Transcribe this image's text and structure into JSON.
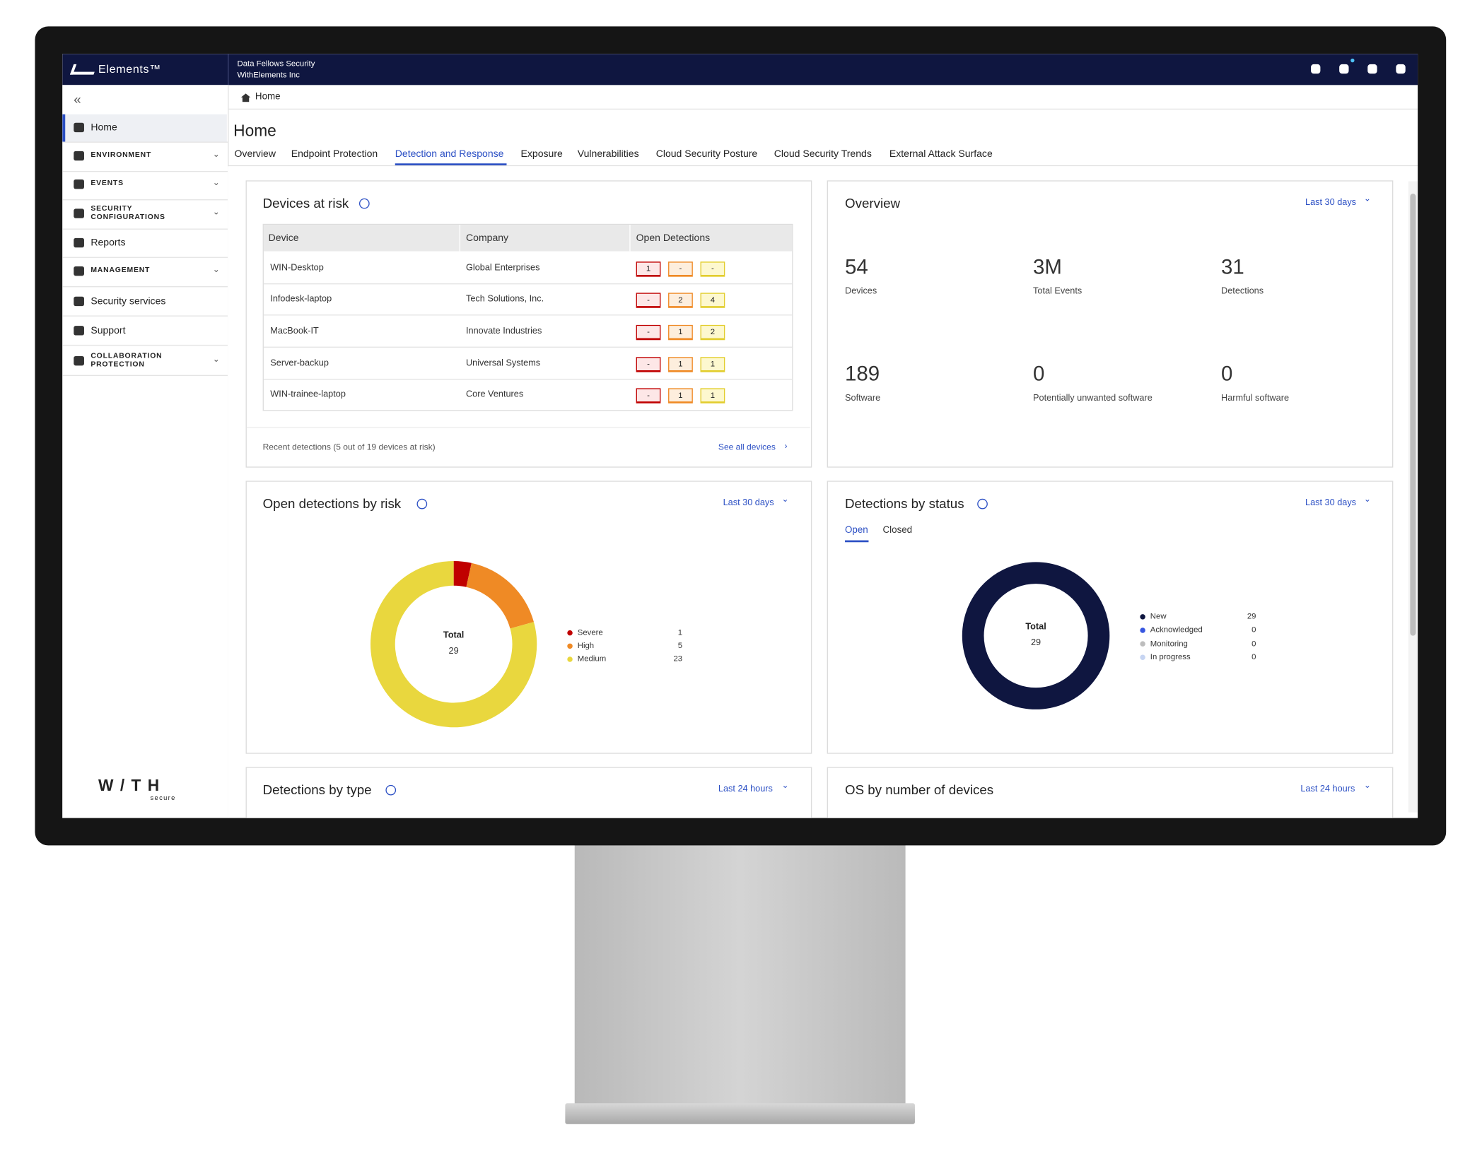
{
  "header": {
    "brand": "Elements™",
    "org": "Data Fellows Security",
    "account": "WithElements Inc"
  },
  "sidebar": {
    "items": [
      "Home",
      "ENVIRONMENT",
      "EVENTS",
      "SECURITY CONFIGURATIONS",
      "Reports",
      "MANAGEMENT",
      "Security services",
      "Support",
      "COLLABORATION PROTECTION"
    ],
    "logo": "W/TH",
    "logo_sub": "secure"
  },
  "breadcrumb": "Home",
  "page_title": "Home",
  "tabs": [
    "Overview",
    "Endpoint Protection",
    "Detection and Response",
    "Exposure",
    "Vulnerabilities",
    "Cloud Security Posture",
    "Cloud Security Trends",
    "External Attack Surface"
  ],
  "devices_at_risk": {
    "title": "Devices at risk",
    "columns": [
      "Device",
      "Company",
      "Open Detections"
    ],
    "rows": [
      [
        "WIN-Desktop",
        "Global Enterprises",
        1,
        "-",
        "-"
      ],
      [
        "Infodesk-laptop",
        "Tech Solutions, Inc.",
        "-",
        2,
        4
      ],
      [
        "MacBook-IT",
        "Innovate Industries",
        "-",
        1,
        2
      ],
      [
        "Server-backup",
        "Universal Systems",
        "-",
        1,
        1
      ],
      [
        "WIN-trainee-laptop",
        "Core Ventures",
        "-",
        1,
        1
      ]
    ],
    "footer": "Recent detections (5 out of 19 devices at risk)",
    "link": "See all devices"
  },
  "overview": {
    "title": "Overview",
    "period": "Last 30 days",
    "stats": [
      {
        "value": "54",
        "label": "Devices"
      },
      {
        "value": "3M",
        "label": "Total Events"
      },
      {
        "value": "31",
        "label": "Detections"
      },
      {
        "value": "189",
        "label": "Software"
      },
      {
        "value": "0",
        "label": "Potentially unwanted software"
      },
      {
        "value": "0",
        "label": "Harmful software"
      }
    ]
  },
  "open_detections_by_risk": {
    "title": "Open detections by risk",
    "period": "Last 30 days",
    "total_label": "Total",
    "total": 29,
    "series": [
      {
        "name": "Severe",
        "value": 1,
        "color": "#c00000"
      },
      {
        "name": "High",
        "value": 5,
        "color": "#ef8a25"
      },
      {
        "name": "Medium",
        "value": 23,
        "color": "#e9d73e"
      }
    ]
  },
  "detections_by_status": {
    "title": "Detections by status",
    "period": "Last 30 days",
    "tabs": [
      "Open",
      "Closed"
    ],
    "total_label": "Total",
    "total": 29,
    "series": [
      {
        "name": "New",
        "value": 29,
        "color": "#0f1640"
      },
      {
        "name": "Acknowledged",
        "value": 0,
        "color": "#3656e0"
      },
      {
        "name": "Monitoring",
        "value": 0,
        "color": "#bdbdbd"
      },
      {
        "name": "In progress",
        "value": 0,
        "color": "#c7d5f2"
      }
    ]
  },
  "detections_by_type": {
    "title": "Detections by type",
    "period": "Last 24 hours"
  },
  "os_by_devices": {
    "title": "OS by number of devices",
    "period": "Last 24 hours"
  }
}
